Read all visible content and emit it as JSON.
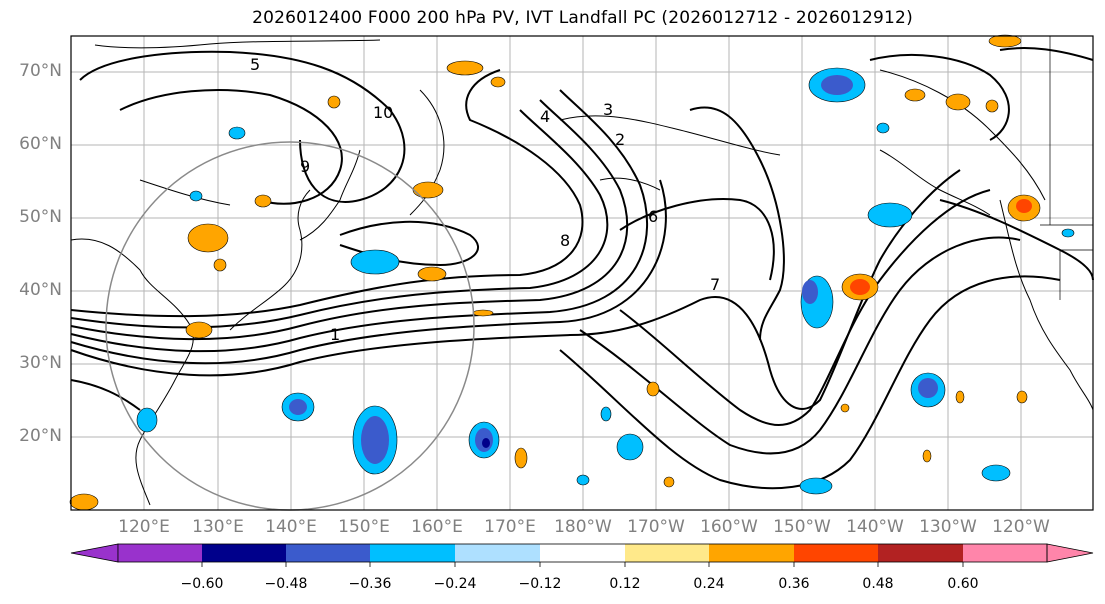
{
  "figure": {
    "title": "2026012400 F000 200 hPa PV, IVT Landfall PC (2026012712 - 2026012912)",
    "lat_labels": [
      "70°N",
      "60°N",
      "50°N",
      "40°N",
      "30°N",
      "20°N"
    ],
    "lon_labels": [
      "120°E",
      "130°E",
      "140°E",
      "150°E",
      "160°E",
      "170°E",
      "180°W",
      "170°W",
      "160°W",
      "150°W",
      "140°W",
      "130°W",
      "120°W"
    ],
    "pv_contour_labels": [
      "10",
      "9",
      "8",
      "7",
      "6",
      "5",
      "4",
      "3",
      "2",
      "1"
    ]
  },
  "colorbar": {
    "ticks": [
      "−0.60",
      "−0.48",
      "−0.36",
      "−0.24",
      "−0.12",
      "0.12",
      "0.24",
      "0.36",
      "0.48",
      "0.60"
    ],
    "colors": [
      "#9932cc",
      "#00008b",
      "#3b5bcc",
      "#00bfff",
      "#aee0ff",
      "#ffffff",
      "#ffe98a",
      "#ffa500",
      "#ff4500",
      "#b22222",
      "#ff85aa"
    ]
  }
}
